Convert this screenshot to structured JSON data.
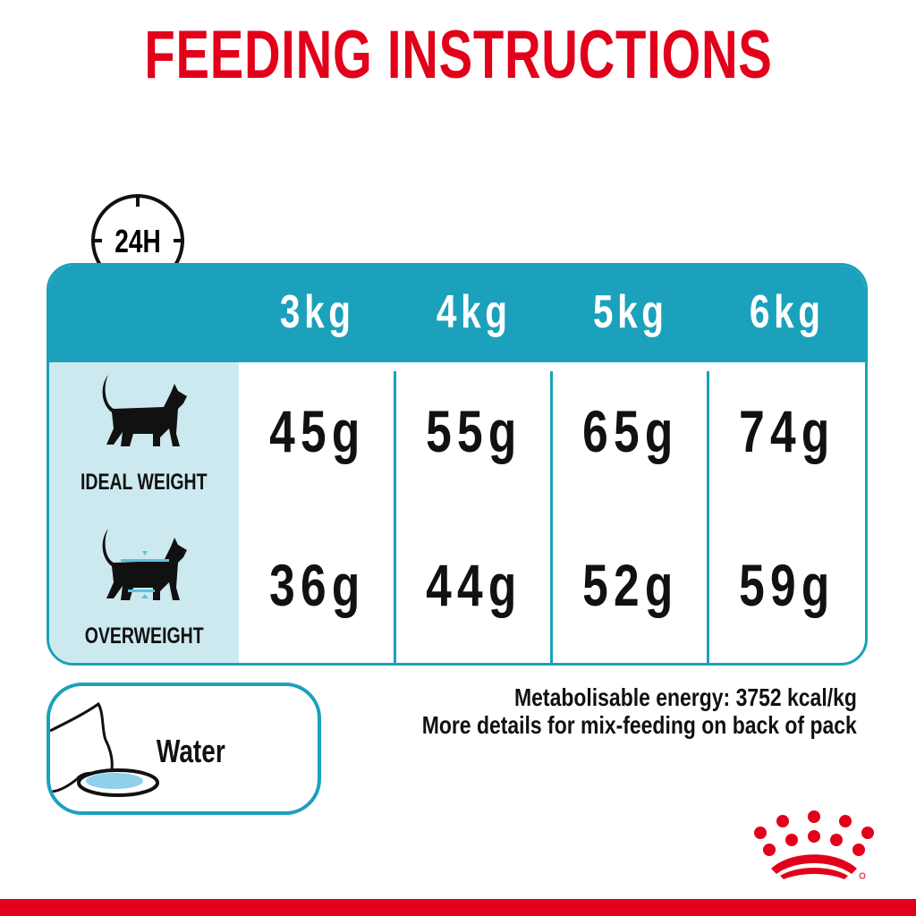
{
  "title": "FEEDING INSTRUCTIONS",
  "clock_label": "24H",
  "table": {
    "columns": [
      "3kg",
      "4kg",
      "5kg",
      "6kg"
    ],
    "rows": [
      {
        "label": "IDEAL WEIGHT",
        "icon": "cat-ideal-weight-icon",
        "values": [
          "45g",
          "55g",
          "65g",
          "74g"
        ]
      },
      {
        "label": "OVERWEIGHT",
        "icon": "cat-overweight-icon",
        "values": [
          "36g",
          "44g",
          "52g",
          "59g"
        ]
      }
    ]
  },
  "water": {
    "label": "Water",
    "icon": "cat-drinking-water-icon"
  },
  "notes": [
    "Metabolisable energy: 3752 kcal/kg",
    "More details for mix-feeding on back of pack"
  ],
  "logo": "royal-canin-crown-logo",
  "colors": {
    "brand_red": "#e2001a",
    "teal": "#1ba1bb",
    "light_blue": "#cde9f0"
  }
}
